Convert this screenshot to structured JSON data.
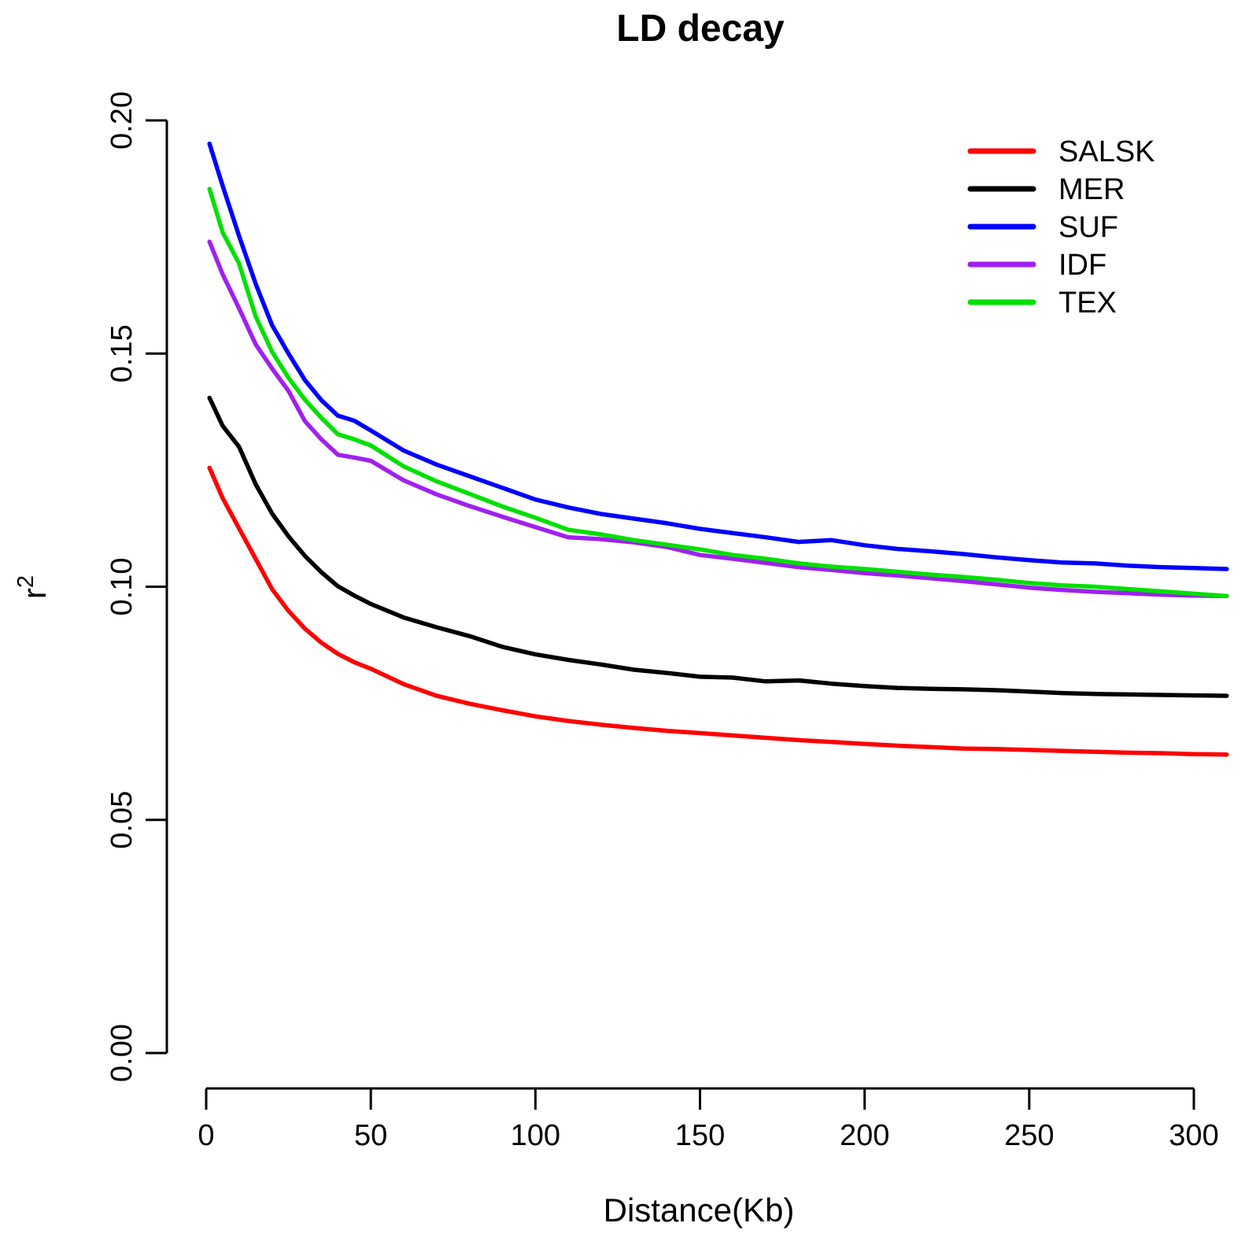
{
  "figure": {
    "background": "#ffffff",
    "axis_color": "#000000",
    "text_color": "#000000"
  },
  "chart_data": {
    "type": "line",
    "title": "LD decay",
    "xlabel": "Distance(Kb)",
    "ylabel": "r^2",
    "ylabel_base": "r",
    "ylabel_superscript": "2",
    "xlim": [
      0,
      310
    ],
    "ylim": [
      0.0,
      0.2
    ],
    "x_ticks": [
      0,
      50,
      100,
      150,
      200,
      250,
      300
    ],
    "y_ticks": [
      0.0,
      0.05,
      0.1,
      0.15,
      0.2
    ],
    "y_tick_decimals": 2,
    "grid": false,
    "legend_position": "top-right",
    "x": [
      1,
      5,
      10,
      15,
      20,
      25,
      30,
      35,
      40,
      45,
      50,
      60,
      70,
      80,
      90,
      100,
      110,
      120,
      130,
      140,
      150,
      160,
      170,
      180,
      190,
      200,
      210,
      220,
      230,
      240,
      250,
      260,
      270,
      280,
      290,
      300,
      310
    ],
    "series": [
      {
        "name": "SALSK",
        "color": "#FF0000",
        "values": [
          0.1255,
          0.119,
          0.1125,
          0.106,
          0.0995,
          0.0948,
          0.091,
          0.088,
          0.0856,
          0.0838,
          0.0824,
          0.0791,
          0.0766,
          0.0749,
          0.0735,
          0.0722,
          0.0712,
          0.0704,
          0.0697,
          0.0691,
          0.0686,
          0.0681,
          0.0676,
          0.0671,
          0.0667,
          0.0663,
          0.0659,
          0.0656,
          0.0653,
          0.0652,
          0.065,
          0.0648,
          0.0646,
          0.0644,
          0.0643,
          0.0641,
          0.064
        ]
      },
      {
        "name": "MER",
        "color": "#000000",
        "values": [
          0.1405,
          0.1345,
          0.13,
          0.122,
          0.1157,
          0.1108,
          0.1066,
          0.1031,
          0.1001,
          0.0981,
          0.0963,
          0.0934,
          0.0913,
          0.0894,
          0.0871,
          0.0855,
          0.0843,
          0.0833,
          0.0822,
          0.0815,
          0.0807,
          0.0805,
          0.0797,
          0.0799,
          0.0792,
          0.0787,
          0.0783,
          0.0781,
          0.078,
          0.0778,
          0.0775,
          0.0772,
          0.077,
          0.0769,
          0.0768,
          0.0767,
          0.0766
        ]
      },
      {
        "name": "SUF",
        "color": "#0000FF",
        "values": [
          0.195,
          0.186,
          0.1752,
          0.165,
          0.1561,
          0.15,
          0.1443,
          0.14,
          0.1367,
          0.1356,
          0.1335,
          0.1292,
          0.1262,
          0.1237,
          0.1212,
          0.1187,
          0.117,
          0.1156,
          0.1146,
          0.1136,
          0.1124,
          0.1115,
          0.1106,
          0.1096,
          0.11,
          0.1089,
          0.1081,
          0.1076,
          0.107,
          0.1063,
          0.1057,
          0.1052,
          0.105,
          0.1045,
          0.1042,
          0.104,
          0.1038
        ]
      },
      {
        "name": "IDF",
        "color": "#A020F0",
        "values": [
          0.174,
          0.167,
          0.1597,
          0.152,
          0.1468,
          0.142,
          0.1355,
          0.1316,
          0.1283,
          0.1277,
          0.127,
          0.1228,
          0.1198,
          0.1173,
          0.115,
          0.1128,
          0.1106,
          0.1102,
          0.1095,
          0.1085,
          0.1068,
          0.106,
          0.1051,
          0.1042,
          0.1036,
          0.1029,
          0.1024,
          0.1018,
          0.1012,
          0.1005,
          0.0998,
          0.0993,
          0.0989,
          0.0986,
          0.0983,
          0.0981,
          0.098
        ]
      },
      {
        "name": "TEX",
        "color": "#00E000",
        "values": [
          0.1853,
          0.176,
          0.1693,
          0.158,
          0.1504,
          0.1448,
          0.1401,
          0.1362,
          0.1327,
          0.1316,
          0.1303,
          0.1258,
          0.1226,
          0.1199,
          0.1172,
          0.1148,
          0.1122,
          0.1112,
          0.11,
          0.109,
          0.108,
          0.1068,
          0.106,
          0.105,
          0.1043,
          0.1038,
          0.1032,
          0.1026,
          0.1021,
          0.1015,
          0.1008,
          0.1003,
          0.1,
          0.0995,
          0.099,
          0.0985,
          0.098
        ]
      }
    ],
    "legend": [
      {
        "label": "SALSK",
        "color": "#FF0000"
      },
      {
        "label": "MER",
        "color": "#000000"
      },
      {
        "label": "SUF",
        "color": "#0000FF"
      },
      {
        "label": "IDF",
        "color": "#A020F0"
      },
      {
        "label": "TEX",
        "color": "#00E000"
      }
    ]
  }
}
